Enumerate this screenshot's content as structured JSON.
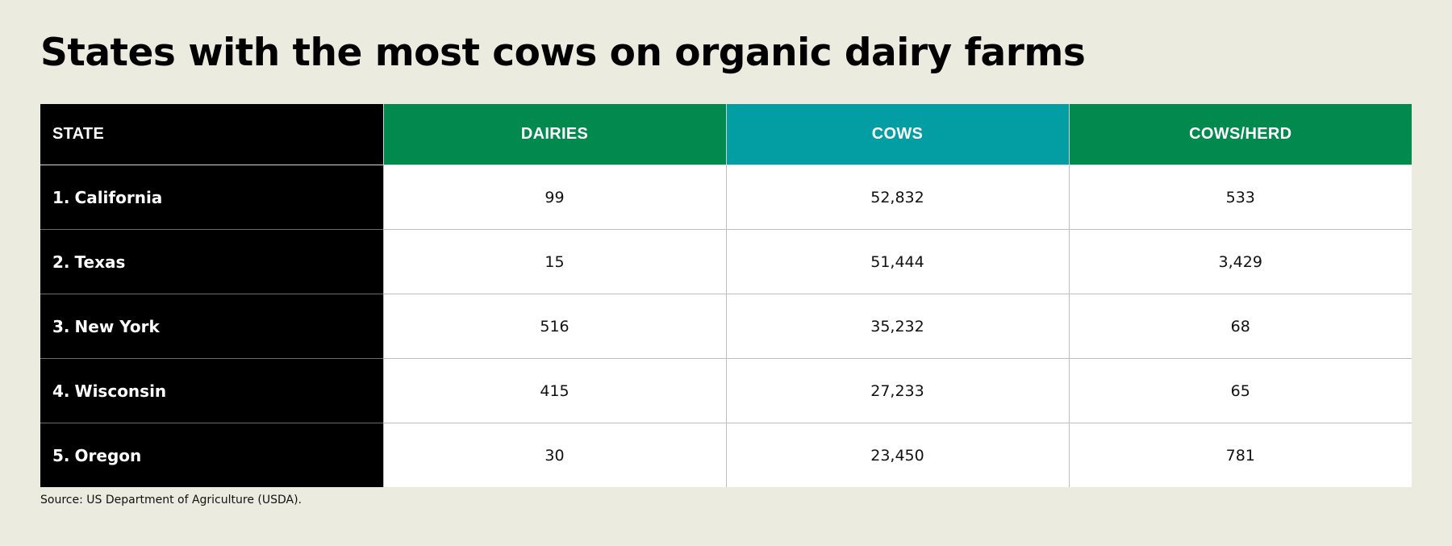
{
  "title": "States with the most cows on organic dairy farms",
  "source": "Source: US Department of Agriculture (USDA).",
  "colors": {
    "background": "#ecebe0",
    "state_column": "#000000",
    "dairies_header": "#02894d",
    "cows_header": "#029ea3",
    "cows_per_herd_header": "#02894d",
    "cell_background": "#ffffff"
  },
  "chart_data": {
    "type": "table",
    "columns": [
      "STATE",
      "DAIRIES",
      "COWS",
      "COWS/HERD"
    ],
    "rows": [
      {
        "rank": "1.",
        "state": "California",
        "dairies": "99",
        "cows": "52,832",
        "cows_per_herd": "533"
      },
      {
        "rank": "2.",
        "state": "Texas",
        "dairies": "15",
        "cows": "51,444",
        "cows_per_herd": "3,429"
      },
      {
        "rank": "3.",
        "state": "New York",
        "dairies": "516",
        "cows": "35,232",
        "cows_per_herd": "68"
      },
      {
        "rank": "4.",
        "state": "Wisconsin",
        "dairies": "415",
        "cows": "27,233",
        "cows_per_herd": "65"
      },
      {
        "rank": "5.",
        "state": "Oregon",
        "dairies": "30",
        "cows": "23,450",
        "cows_per_herd": "781"
      }
    ]
  }
}
